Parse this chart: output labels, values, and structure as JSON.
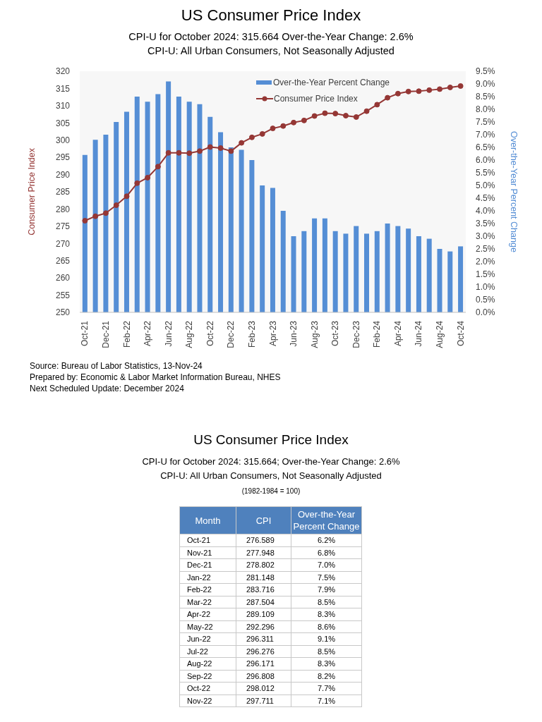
{
  "chart_data": [
    {
      "type": "bar",
      "title": "US Consumer Price Index",
      "subtitle": "CPI-U for October 2024: 315.664 Over-the-Year Change: 2.6%\nCPI-U: All Urban Consumers, Not Seasonally Adjusted",
      "ylabel": "Consumer Price Index",
      "y2label": "Over-the-Year Percent Change",
      "categories": [
        "Oct-21",
        null,
        "Dec-21",
        null,
        "Feb-22",
        null,
        "Apr-22",
        null,
        "Jun-22",
        null,
        "Aug-22",
        null,
        "Oct-22",
        null,
        "Dec-22",
        null,
        "Feb-23",
        null,
        "Apr-23",
        null,
        "Jun-23",
        null,
        "Aug-23",
        null,
        "Oct-23",
        null,
        "Dec-23",
        null,
        "Feb-24",
        null,
        "Apr-24",
        null,
        "Jun-24",
        null,
        "Aug-24",
        null,
        "Oct-24"
      ],
      "series": [
        {
          "name": "Over-the-Year Percent Change",
          "type": "bar",
          "axis": "y2",
          "color": "#558ed5",
          "values": [
            6.2,
            6.8,
            7.0,
            7.5,
            7.9,
            8.5,
            8.3,
            8.6,
            9.1,
            8.5,
            8.3,
            8.2,
            7.7,
            7.1,
            6.5,
            6.4,
            6.0,
            5.0,
            4.9,
            4.0,
            3.0,
            3.2,
            3.7,
            3.7,
            3.2,
            3.1,
            3.4,
            3.1,
            3.2,
            3.5,
            3.4,
            3.3,
            3.0,
            2.9,
            2.5,
            2.4,
            2.6
          ]
        },
        {
          "name": "Consumer Price Index",
          "type": "line",
          "color": "#953735",
          "values": [
            276.6,
            277.9,
            278.8,
            281.1,
            283.7,
            287.5,
            289.1,
            292.3,
            296.3,
            296.3,
            296.2,
            296.8,
            298.0,
            297.7,
            296.8,
            299.2,
            300.8,
            301.8,
            303.4,
            304.1,
            305.1,
            305.7,
            307.0,
            307.8,
            307.7,
            307.1,
            306.7,
            308.4,
            310.3,
            312.3,
            313.5,
            314.1,
            314.2,
            314.5,
            314.8,
            315.3,
            315.7
          ]
        }
      ],
      "ylim": [
        250,
        320
      ],
      "yticks": [
        250,
        255,
        260,
        265,
        270,
        275,
        280,
        285,
        290,
        295,
        300,
        305,
        310,
        315,
        320
      ],
      "y2lim": [
        0,
        9.5
      ],
      "y2ticks": [
        {
          "value": 0,
          "label": "0.0%"
        },
        {
          "value": 0.5,
          "label": "0.5%"
        },
        {
          "value": 1,
          "label": "1.0%"
        },
        {
          "value": 1.5,
          "label": "1.5%"
        },
        {
          "value": 2,
          "label": "2.0%"
        },
        {
          "value": 2.5,
          "label": "2.5%"
        },
        {
          "value": 3,
          "label": "3.0%"
        },
        {
          "value": 3.5,
          "label": "3.5%"
        },
        {
          "value": 4,
          "label": "4.0%"
        },
        {
          "value": 4.5,
          "label": "4.5%"
        },
        {
          "value": 5,
          "label": "5.0%"
        },
        {
          "value": 5.5,
          "label": "5.5%"
        },
        {
          "value": 6,
          "label": "6.0%"
        },
        {
          "value": 6.5,
          "label": "6.5%"
        },
        {
          "value": 7,
          "label": "7.0%"
        },
        {
          "value": 7.5,
          "label": "7.5%"
        },
        {
          "value": 8,
          "label": "8.0%"
        },
        {
          "value": 8.5,
          "label": "8.5%"
        },
        {
          "value": 9,
          "label": "9.0%"
        },
        {
          "value": 9.5,
          "label": "9.5%"
        }
      ],
      "legend": "top right",
      "marker": "circle",
      "line_style": "solid",
      "annotations": [
        "Source: Bureau of Labor Statistics, 13-Nov-24",
        "Prepared by: Economic & Labor Market Information Bureau, NHES",
        "Next Scheduled Update: December 2024"
      ]
    },
    {
      "type": "other",
      "title": "US Consumer Price Index",
      "subtitle": "CPI-U for October 2024: 315.664; Over-the-Year Change: 2.6%\nCPI-U: All Urban Consumers, Not Seasonally Adjusted",
      "annotations": [
        "(1982-1984 = 100)"
      ],
      "xlabel": "Month",
      "categories": [
        "Oct-21",
        "Nov-21",
        "Dec-21",
        "Jan-22",
        "Feb-22",
        "Mar-22",
        "Apr-22",
        "May-22",
        "Jun-22",
        "Jul-22",
        "Aug-22",
        "Sep-22",
        "Oct-22",
        "Nov-22"
      ],
      "data_labels": true,
      "series": [
        {
          "name": "CPI",
          "values": [
            276.589,
            277.948,
            278.802,
            281.148,
            283.716,
            287.504,
            289.109,
            292.296,
            296.311,
            296.276,
            296.171,
            296.808,
            298.012,
            297.711
          ]
        },
        {
          "name": "Over-the-Year Percent Change",
          "values": [
            6.2,
            6.8,
            7.0,
            7.5,
            7.9,
            8.5,
            8.3,
            8.6,
            9.1,
            8.5,
            8.3,
            8.2,
            7.7,
            7.1
          ],
          "value_labels": [
            "6.2%",
            "6.8%",
            "7.0%",
            "7.5%",
            "7.9%",
            "8.5%",
            "8.3%",
            "8.6%",
            "9.1%",
            "8.5%",
            "8.3%",
            "8.2%",
            "7.7%",
            "7.1%"
          ]
        }
      ]
    }
  ]
}
